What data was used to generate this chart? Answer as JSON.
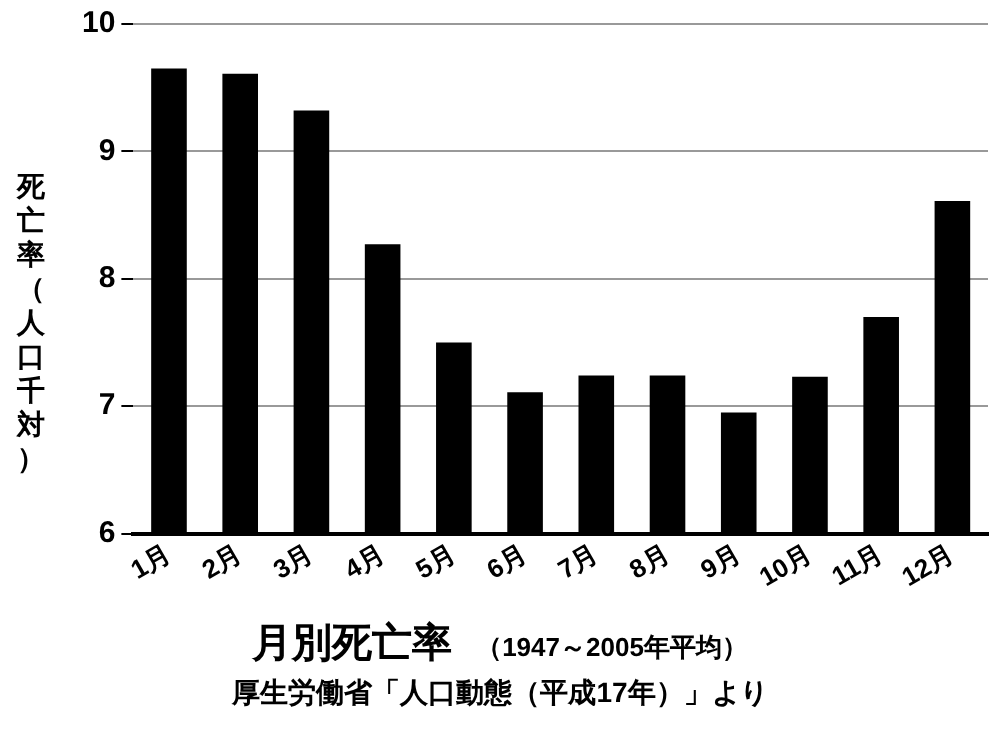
{
  "chart_data": {
    "type": "bar",
    "title": "月別死亡率",
    "subtitle": "（1947～2005年平均）",
    "annotations": [
      "厚生労働省「人口動態（平成17年）」より"
    ],
    "ylabel": "死亡率（人口千対）",
    "categories": [
      "1月",
      "2月",
      "3月",
      "4月",
      "5月",
      "6月",
      "7月",
      "8月",
      "9月",
      "10月",
      "11月",
      "12月"
    ],
    "values": [
      9.65,
      9.61,
      9.32,
      8.27,
      7.5,
      7.11,
      7.24,
      7.24,
      6.95,
      7.23,
      7.7,
      8.61
    ],
    "color": "#000000",
    "ylim": [
      6,
      10
    ],
    "yticks": [
      6,
      7,
      8,
      9,
      10
    ],
    "grid": "y"
  }
}
